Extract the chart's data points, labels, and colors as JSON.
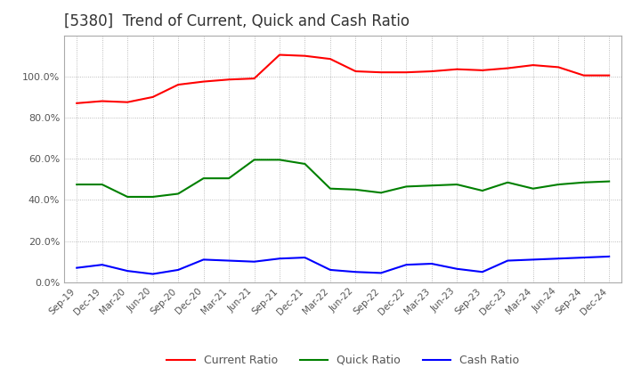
{
  "title": "[5380]  Trend of Current, Quick and Cash Ratio",
  "title_fontsize": 12,
  "ylim": [
    0.0,
    1.2
  ],
  "yticks": [
    0.0,
    0.2,
    0.4,
    0.6,
    0.8,
    1.0
  ],
  "background_color": "#ffffff",
  "grid_color": "#aaaaaa",
  "x_labels": [
    "Sep-19",
    "Dec-19",
    "Mar-20",
    "Jun-20",
    "Sep-20",
    "Dec-20",
    "Mar-21",
    "Jun-21",
    "Sep-21",
    "Dec-21",
    "Mar-22",
    "Jun-22",
    "Sep-22",
    "Dec-22",
    "Mar-23",
    "Jun-23",
    "Sep-23",
    "Dec-23",
    "Mar-24",
    "Jun-24",
    "Sep-24",
    "Dec-24"
  ],
  "current_ratio": [
    0.87,
    0.88,
    0.875,
    0.9,
    0.96,
    0.975,
    0.985,
    0.99,
    1.105,
    1.1,
    1.085,
    1.025,
    1.02,
    1.02,
    1.025,
    1.035,
    1.03,
    1.04,
    1.055,
    1.045,
    1.005,
    1.005
  ],
  "quick_ratio": [
    0.475,
    0.475,
    0.415,
    0.415,
    0.43,
    0.505,
    0.505,
    0.595,
    0.595,
    0.575,
    0.455,
    0.45,
    0.435,
    0.465,
    0.47,
    0.475,
    0.445,
    0.485,
    0.455,
    0.475,
    0.485,
    0.49
  ],
  "cash_ratio": [
    0.07,
    0.085,
    0.055,
    0.04,
    0.06,
    0.11,
    0.105,
    0.1,
    0.115,
    0.12,
    0.06,
    0.05,
    0.045,
    0.085,
    0.09,
    0.065,
    0.05,
    0.105,
    0.11,
    0.115,
    0.12,
    0.125
  ],
  "current_color": "#ff0000",
  "quick_color": "#008000",
  "cash_color": "#0000ff",
  "line_width": 1.5,
  "legend_labels": [
    "Current Ratio",
    "Quick Ratio",
    "Cash Ratio"
  ]
}
